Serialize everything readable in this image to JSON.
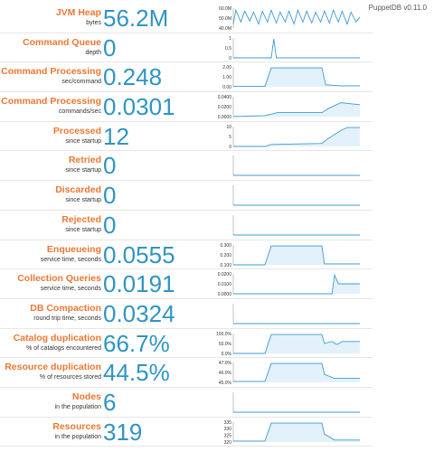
{
  "version": "PuppetDB v0.11.0",
  "metrics": [
    {
      "id": "jvm-heap",
      "title": "JVM Heap",
      "subtitle": "bytes",
      "value": "56.2M",
      "ticks": [
        "60.0M",
        "50.0M",
        "40.0M"
      ],
      "fill": false,
      "series": [
        [
          0,
          0.2
        ],
        [
          0.02,
          0.9
        ],
        [
          0.06,
          0.3
        ],
        [
          0.09,
          0.85
        ],
        [
          0.13,
          0.35
        ],
        [
          0.16,
          0.8
        ],
        [
          0.2,
          0.2
        ],
        [
          0.23,
          0.85
        ],
        [
          0.27,
          0.3
        ],
        [
          0.3,
          0.9
        ],
        [
          0.34,
          0.25
        ],
        [
          0.37,
          0.8
        ],
        [
          0.41,
          0.3
        ],
        [
          0.44,
          0.85
        ],
        [
          0.48,
          0.2
        ],
        [
          0.51,
          0.9
        ],
        [
          0.55,
          0.3
        ],
        [
          0.58,
          0.85
        ],
        [
          0.62,
          0.25
        ],
        [
          0.65,
          0.8
        ],
        [
          0.69,
          0.3
        ],
        [
          0.72,
          0.85
        ],
        [
          0.76,
          0.25
        ],
        [
          0.79,
          0.9
        ],
        [
          0.83,
          0.3
        ],
        [
          0.86,
          0.85
        ],
        [
          0.9,
          0.2
        ],
        [
          0.93,
          0.8
        ],
        [
          0.97,
          0.3
        ],
        [
          1,
          0.55
        ]
      ]
    },
    {
      "id": "command-queue",
      "title": "Command Queue",
      "subtitle": "depth",
      "value": "0",
      "ticks": [
        "1",
        "0.5",
        "0"
      ],
      "fill": false,
      "series": [
        [
          0,
          0
        ],
        [
          0.3,
          0
        ],
        [
          0.32,
          0.95
        ],
        [
          0.34,
          0
        ],
        [
          1,
          0
        ]
      ]
    },
    {
      "id": "command-processing-sec",
      "title": "Command Processing",
      "subtitle": "sec/command",
      "value": "0.248",
      "ticks": [
        "2.00",
        "1.00",
        "0.00"
      ],
      "fill": true,
      "series": [
        [
          0,
          0.02
        ],
        [
          0.25,
          0.02
        ],
        [
          0.3,
          0.95
        ],
        [
          0.7,
          0.95
        ],
        [
          0.73,
          0.1
        ],
        [
          0.85,
          0.05
        ],
        [
          1,
          0.05
        ]
      ]
    },
    {
      "id": "command-processing-rate",
      "title": "Command Processing",
      "subtitle": "commands/sec",
      "value": "0.0301",
      "ticks": [
        "0.0400",
        "0.0200",
        "0.0000"
      ],
      "fill": true,
      "series": [
        [
          0,
          0
        ],
        [
          0.25,
          0.05
        ],
        [
          0.35,
          0.2
        ],
        [
          0.7,
          0.2
        ],
        [
          0.75,
          0.4
        ],
        [
          0.85,
          0.7
        ],
        [
          1,
          0.6
        ]
      ]
    },
    {
      "id": "processed",
      "title": "Processed",
      "subtitle": "since startup",
      "value": "12",
      "ticks": [
        "10",
        "5",
        "0"
      ],
      "fill": true,
      "series": [
        [
          0,
          0
        ],
        [
          0.25,
          0
        ],
        [
          0.3,
          0.1
        ],
        [
          0.7,
          0.15
        ],
        [
          0.75,
          0.4
        ],
        [
          0.85,
          0.8
        ],
        [
          0.9,
          0.95
        ],
        [
          1,
          0.95
        ]
      ]
    },
    {
      "id": "retried",
      "title": "Retried",
      "subtitle": "since startup",
      "value": "0",
      "ticks": [],
      "fill": false,
      "series": [
        [
          0,
          0
        ],
        [
          1,
          0
        ]
      ]
    },
    {
      "id": "discarded",
      "title": "Discarded",
      "subtitle": "since startup",
      "value": "0",
      "ticks": [],
      "fill": false,
      "series": [
        [
          0,
          0
        ],
        [
          1,
          0
        ]
      ]
    },
    {
      "id": "rejected",
      "title": "Rejected",
      "subtitle": "since startup",
      "value": "0",
      "ticks": [],
      "fill": false,
      "series": [
        [
          0,
          0
        ],
        [
          1,
          0
        ]
      ]
    },
    {
      "id": "enqueueing",
      "title": "Enqueueing",
      "subtitle": "service time, seconds",
      "value": "0.0555",
      "ticks": [
        "0.300",
        "0.200",
        "0.100"
      ],
      "fill": true,
      "series": [
        [
          0,
          0
        ],
        [
          0.25,
          0
        ],
        [
          0.3,
          0.95
        ],
        [
          0.7,
          0.95
        ],
        [
          0.72,
          0.05
        ],
        [
          1,
          0.05
        ]
      ]
    },
    {
      "id": "collection-queries",
      "title": "Collection Queries",
      "subtitle": "service time, seconds",
      "value": "0.0191",
      "ticks": [
        "0.0200",
        "0.0100",
        "0.0000"
      ],
      "fill": true,
      "series": [
        [
          0,
          0
        ],
        [
          0.78,
          0
        ],
        [
          0.8,
          0.95
        ],
        [
          0.83,
          0.5
        ],
        [
          1,
          0.5
        ]
      ]
    },
    {
      "id": "db-compaction",
      "title": "DB Compaction",
      "subtitle": "round trip time, seconds",
      "value": "0.0324",
      "ticks": [],
      "fill": false,
      "series": [
        [
          0,
          0
        ],
        [
          1,
          0
        ]
      ]
    },
    {
      "id": "catalog-duplication",
      "title": "Catalog duplication",
      "subtitle": "% of catalogs encountered",
      "value": "66.7%",
      "ticks": [
        "100.0%",
        "50.0%",
        "0.0%"
      ],
      "fill": true,
      "series": [
        [
          0,
          0
        ],
        [
          0.25,
          0
        ],
        [
          0.3,
          0.95
        ],
        [
          0.7,
          0.95
        ],
        [
          0.72,
          0.5
        ],
        [
          0.78,
          0.6
        ],
        [
          0.82,
          0.45
        ],
        [
          0.86,
          0.6
        ],
        [
          1,
          0.6
        ]
      ]
    },
    {
      "id": "resource-duplication",
      "title": "Resource duplication",
      "subtitle": "% of resources stored",
      "value": "44.5%",
      "ticks": [
        "47.0%",
        "46.0%",
        "45.0%"
      ],
      "fill": true,
      "series": [
        [
          0,
          0.05
        ],
        [
          0.25,
          0.05
        ],
        [
          0.3,
          0.95
        ],
        [
          0.7,
          0.95
        ],
        [
          0.72,
          0.4
        ],
        [
          0.8,
          0.2
        ],
        [
          1,
          0.2
        ]
      ]
    },
    {
      "id": "nodes",
      "title": "Nodes",
      "subtitle": "in the population",
      "value": "6",
      "ticks": [],
      "fill": false,
      "series": [
        [
          0,
          0
        ],
        [
          1,
          0
        ]
      ]
    },
    {
      "id": "resources",
      "title": "Resources",
      "subtitle": "in the population",
      "value": "319",
      "ticks": [
        "335",
        "330",
        "325",
        "320"
      ],
      "fill": true,
      "series": [
        [
          0,
          0.05
        ],
        [
          0.25,
          0.05
        ],
        [
          0.3,
          0.95
        ],
        [
          0.7,
          0.95
        ],
        [
          0.72,
          0.4
        ],
        [
          0.8,
          0.1
        ],
        [
          1,
          0.1
        ]
      ]
    }
  ]
}
